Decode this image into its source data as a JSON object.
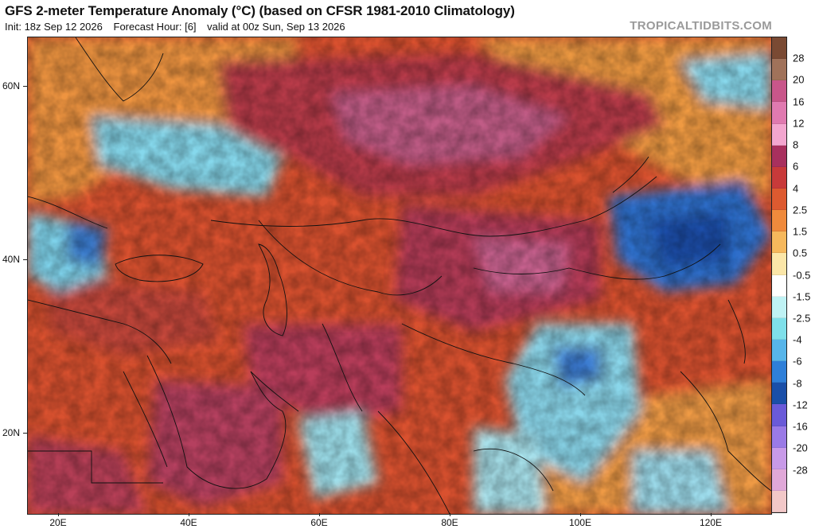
{
  "header": {
    "title": "GFS 2-meter Temperature Anomaly (°C) (based on CFSR 1981-2010 Climatology)",
    "init": "Init: 18z Sep 12 2026",
    "forecast_hour": "Forecast Hour: [6]",
    "valid": "valid at 00z Sun, Sep 13 2026",
    "brand": "TROPICALTIDBITS.COM"
  },
  "axes": {
    "lat_labels": [
      "60N",
      "40N",
      "20N"
    ],
    "lon_labels": [
      "20E",
      "40E",
      "60E",
      "80E",
      "100E",
      "120E"
    ]
  },
  "colorbar": {
    "labels": [
      "28",
      "20",
      "16",
      "12",
      "8",
      "6",
      "4",
      "2.5",
      "1.5",
      "0.5",
      "-0.5",
      "-1.5",
      "-2.5",
      "-4",
      "-6",
      "-8",
      "-12",
      "-16",
      "-20",
      "-28"
    ],
    "colors": [
      "#7a4a33",
      "#a0725a",
      "#c8568a",
      "#e07ab0",
      "#f3a6cf",
      "#a8305e",
      "#c83a3a",
      "#dd5a30",
      "#ef8a3c",
      "#f6b85c",
      "#fbe6a8",
      "#ffffff",
      "#bff2f4",
      "#7fe0ea",
      "#57b5ea",
      "#2f7fd8",
      "#1a4fa8",
      "#6a5ad8",
      "#9a7ae6",
      "#c89ae8",
      "#e0a8d8",
      "#f2c8c8"
    ]
  },
  "map": {
    "colors": {
      "warm": "#d84a2e",
      "hot": "#b8304a",
      "very_hot": "#c25a86",
      "mild": "#f0a04a",
      "neutral": "#fbe9b0",
      "cool": "#8fe0ec",
      "cold": "#3a78d0",
      "very_cold": "#1f50a8",
      "border": "#111111"
    }
  }
}
